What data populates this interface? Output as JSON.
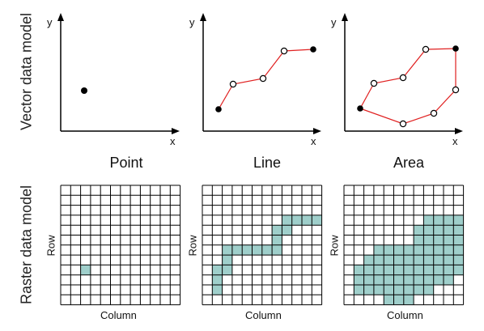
{
  "labels": {
    "vector_model": "Vector data model",
    "raster_model": "Raster data model"
  },
  "panels": [
    {
      "title": "Point",
      "axis_x": "x",
      "axis_y": "y",
      "grid_col_label": "Column",
      "grid_row_label": "Row"
    },
    {
      "title": "Line",
      "axis_x": "x",
      "axis_y": "y",
      "grid_col_label": "Column",
      "grid_row_label": "Row"
    },
    {
      "title": "Area",
      "axis_x": "x",
      "axis_y": "y",
      "grid_col_label": "Column",
      "grid_row_label": "Row"
    }
  ],
  "colors": {
    "fill": "#9fcfcb",
    "line": "#e02020",
    "grid": "#000000"
  },
  "grid": {
    "cols": 12,
    "rows": 12
  },
  "raster_cells": {
    "point": [
      [
        2,
        8
      ]
    ],
    "line": [
      [
        8,
        3
      ],
      [
        9,
        3
      ],
      [
        10,
        3
      ],
      [
        11,
        3
      ],
      [
        7,
        4
      ],
      [
        8,
        4
      ],
      [
        7,
        5
      ],
      [
        2,
        6
      ],
      [
        3,
        6
      ],
      [
        4,
        6
      ],
      [
        5,
        6
      ],
      [
        6,
        6
      ],
      [
        7,
        6
      ],
      [
        2,
        7
      ],
      [
        1,
        8
      ],
      [
        2,
        8
      ],
      [
        1,
        9
      ],
      [
        1,
        10
      ]
    ],
    "area": [
      [
        8,
        3
      ],
      [
        9,
        3
      ],
      [
        10,
        3
      ],
      [
        11,
        3
      ],
      [
        7,
        4
      ],
      [
        8,
        4
      ],
      [
        9,
        4
      ],
      [
        10,
        4
      ],
      [
        11,
        4
      ],
      [
        7,
        5
      ],
      [
        8,
        5
      ],
      [
        9,
        5
      ],
      [
        10,
        5
      ],
      [
        11,
        5
      ],
      [
        3,
        6
      ],
      [
        4,
        6
      ],
      [
        5,
        6
      ],
      [
        6,
        6
      ],
      [
        7,
        6
      ],
      [
        8,
        6
      ],
      [
        9,
        6
      ],
      [
        10,
        6
      ],
      [
        11,
        6
      ],
      [
        2,
        7
      ],
      [
        3,
        7
      ],
      [
        4,
        7
      ],
      [
        5,
        7
      ],
      [
        6,
        7
      ],
      [
        7,
        7
      ],
      [
        8,
        7
      ],
      [
        9,
        7
      ],
      [
        10,
        7
      ],
      [
        11,
        7
      ],
      [
        1,
        8
      ],
      [
        2,
        8
      ],
      [
        3,
        8
      ],
      [
        4,
        8
      ],
      [
        5,
        8
      ],
      [
        6,
        8
      ],
      [
        7,
        8
      ],
      [
        8,
        8
      ],
      [
        9,
        8
      ],
      [
        10,
        8
      ],
      [
        11,
        8
      ],
      [
        1,
        9
      ],
      [
        2,
        9
      ],
      [
        3,
        9
      ],
      [
        4,
        9
      ],
      [
        5,
        9
      ],
      [
        6,
        9
      ],
      [
        7,
        9
      ],
      [
        8,
        9
      ],
      [
        9,
        9
      ],
      [
        10,
        9
      ],
      [
        1,
        10
      ],
      [
        2,
        10
      ],
      [
        3,
        10
      ],
      [
        4,
        10
      ],
      [
        5,
        10
      ],
      [
        6,
        10
      ],
      [
        7,
        10
      ],
      [
        8,
        10
      ],
      [
        4,
        11
      ],
      [
        5,
        11
      ],
      [
        6,
        11
      ]
    ]
  }
}
